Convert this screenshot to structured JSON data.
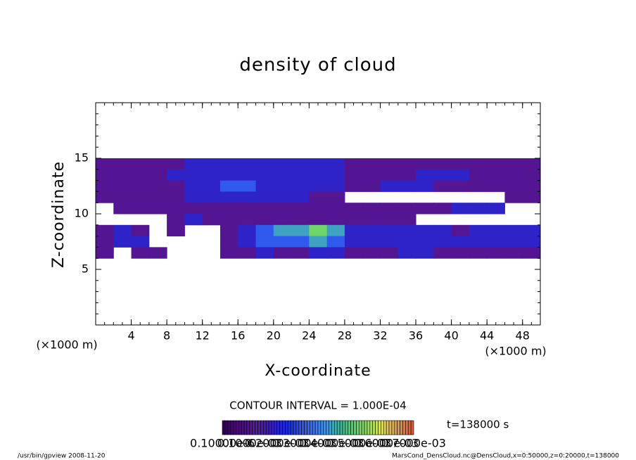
{
  "chart_data": {
    "type": "heatmap",
    "title": "density of cloud",
    "x_label": "X-coordinate",
    "y_label": "Z-coordinate",
    "x_unit": "(×1000 m)",
    "y_unit": "(×1000 m)",
    "xlim": [
      0,
      50
    ],
    "ylim": [
      0,
      20
    ],
    "xticks": [
      4,
      8,
      12,
      16,
      20,
      24,
      28,
      32,
      36,
      40,
      44,
      48
    ],
    "yticks": [
      5,
      10,
      15
    ],
    "x": [
      1,
      3,
      5,
      7,
      9,
      11,
      13,
      15,
      17,
      19,
      21,
      23,
      25,
      27,
      29,
      31,
      33,
      35,
      37,
      39,
      41,
      43,
      45,
      47,
      49
    ],
    "y": [
      14.5,
      13.5,
      12.5,
      11.5,
      10.5,
      9.5,
      8.5,
      7.5,
      6.5
    ],
    "values": [
      [
        0.0001,
        0.0001,
        0.0001,
        0.0001,
        0.0001,
        0.0002,
        0.0002,
        0.0002,
        0.0002,
        0.0002,
        0.0002,
        0.0002,
        0.0002,
        0.0002,
        0.0001,
        0.0001,
        0.0001,
        0.0001,
        0.0001,
        0.0001,
        0.0001,
        0.0001,
        0.0001,
        0.0001,
        0.0001
      ],
      [
        0.0001,
        0.0001,
        0.0001,
        0.0001,
        0.0002,
        0.0002,
        0.0002,
        0.0002,
        0.0002,
        0.0002,
        0.0002,
        0.0002,
        0.0002,
        0.0002,
        0.0001,
        0.0001,
        0.0001,
        0.0001,
        0.0002,
        0.0002,
        0.0002,
        0.0001,
        0.0001,
        0.0001,
        0.0001
      ],
      [
        0.0001,
        0.0001,
        0.0001,
        0.0001,
        0.0001,
        0.0002,
        0.0002,
        0.0003,
        0.0003,
        0.0002,
        0.0002,
        0.0002,
        0.0002,
        0.0002,
        0.0001,
        0.0001,
        0.0002,
        0.0002,
        0.0002,
        0.0001,
        0.0001,
        0.0001,
        0.0001,
        0.0001,
        0.0001
      ],
      [
        0.0001,
        0.0001,
        0.0001,
        0.0001,
        0.0001,
        0.0002,
        0.0002,
        0.0002,
        0.0002,
        0.0002,
        0.0002,
        0.0002,
        0.0001,
        0.0001,
        null,
        null,
        null,
        null,
        null,
        null,
        null,
        null,
        null,
        0.0001,
        0.0001
      ],
      [
        null,
        0.0001,
        0.0001,
        0.0001,
        0.0001,
        0.0001,
        0.0001,
        0.0001,
        0.0001,
        0.0001,
        0.0001,
        0.0001,
        0.0001,
        0.0001,
        0.0001,
        0.0001,
        0.0001,
        0.0001,
        0.0001,
        0.0001,
        0.0002,
        0.0002,
        0.0002,
        null,
        null
      ],
      [
        null,
        null,
        null,
        null,
        0.0001,
        0.0002,
        0.0001,
        0.0001,
        0.0001,
        0.0001,
        0.0001,
        0.0001,
        0.0001,
        0.0001,
        0.0001,
        0.0001,
        0.0001,
        0.0001,
        null,
        null,
        null,
        null,
        null,
        null,
        null
      ],
      [
        0.0001,
        0.0002,
        0.0001,
        null,
        0.0001,
        null,
        null,
        0.0001,
        0.0002,
        0.0003,
        0.0004,
        0.0004,
        0.0005,
        0.0004,
        0.0002,
        0.0002,
        0.0002,
        0.0002,
        0.0002,
        0.0002,
        0.0001,
        0.0002,
        0.0002,
        0.0002,
        0.0002
      ],
      [
        0.0001,
        0.0002,
        0.0002,
        null,
        null,
        null,
        null,
        0.0001,
        0.0002,
        0.0003,
        0.0003,
        0.0003,
        0.0004,
        0.0003,
        0.0002,
        0.0002,
        0.0002,
        0.0002,
        0.0002,
        0.0002,
        0.0002,
        0.0002,
        0.0002,
        0.0002,
        0.0002
      ],
      [
        0.0001,
        null,
        0.0001,
        0.0001,
        null,
        null,
        null,
        0.0001,
        0.0001,
        0.0002,
        0.0001,
        0.0001,
        0.0002,
        0.0002,
        0.0001,
        0.0001,
        0.0001,
        0.0002,
        0.0002,
        0.0001,
        0.0001,
        0.0001,
        0.0001,
        0.0001,
        0.0001
      ]
    ],
    "vlim": [
      0,
      0.0007
    ],
    "colors": [
      "#300048",
      "#5a18a0",
      "#1c28d8",
      "#3f80ff",
      "#40d070",
      "#e0e060",
      "#e05030"
    ],
    "contour_interval": "CONTOUR INTERVAL = 1.000E-04",
    "time": "t=138000 s",
    "colorbar_labels": [
      "0.10000e-6",
      "0.1000e-03",
      "0.2000e-03",
      "0.3000e-03",
      "0.4000e-03",
      "0.5000e-03",
      "0.6000e-03",
      "0.7000e-03"
    ],
    "footer_left": "/usr/bin/gpview  2008-11-20",
    "footer_right": "MarsCond_DensCloud.nc@DensCloud,x=0:50000,z=0:20000,t=138000"
  }
}
